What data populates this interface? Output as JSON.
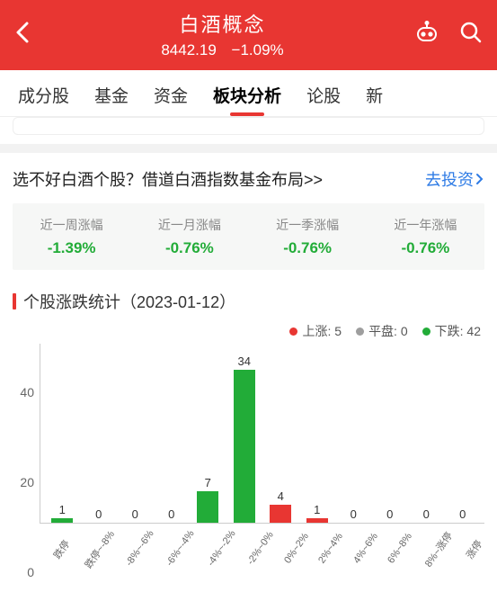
{
  "colors": {
    "brand_red": "#e83632",
    "green": "#22ac38",
    "gray": "#9e9e9e",
    "link_blue": "#2e7be5",
    "metric_bg": "#f6f7f6"
  },
  "header": {
    "title": "白酒概念",
    "index_value": "8442.19",
    "change_pct": "−1.09%"
  },
  "tabs": [
    {
      "label": "成分股",
      "active": false
    },
    {
      "label": "基金",
      "active": false
    },
    {
      "label": "资金",
      "active": false
    },
    {
      "label": "板块分析",
      "active": true
    },
    {
      "label": "论股",
      "active": false
    },
    {
      "label": "新",
      "active": false
    }
  ],
  "promo": {
    "text": "选不好白酒个股？借道白酒指数基金布局>>",
    "link_label": "去投资"
  },
  "metrics": [
    {
      "label": "近一周涨幅",
      "value": "-1.39%",
      "color": "#22ac38"
    },
    {
      "label": "近一月涨幅",
      "value": "-0.76%",
      "color": "#22ac38"
    },
    {
      "label": "近一季涨幅",
      "value": "-0.76%",
      "color": "#22ac38"
    },
    {
      "label": "近一年涨幅",
      "value": "-0.76%",
      "color": "#22ac38"
    }
  ],
  "section": {
    "title": "个股涨跌统计（2023-01-12）"
  },
  "legend": {
    "up": {
      "label": "上涨",
      "count": 5,
      "color": "#e83632"
    },
    "flat": {
      "label": "平盘",
      "count": 0,
      "color": "#9e9e9e"
    },
    "down": {
      "label": "下跌",
      "count": 42,
      "color": "#22ac38"
    }
  },
  "chart": {
    "type": "bar",
    "y_max": 40,
    "y_ticks": [
      0,
      20,
      40
    ],
    "bar_width_ratio": 0.6,
    "categories": [
      "跌停",
      "跌停~-8%",
      "-8%~-6%",
      "-6%~-4%",
      "-4%~-2%",
      "-2%~0%",
      "0%~2%",
      "2%~4%",
      "4%~6%",
      "6%~8%",
      "8%~涨停",
      "涨停"
    ],
    "bars": [
      {
        "value": 1,
        "color": "#22ac38"
      },
      {
        "value": 0,
        "color": "#22ac38"
      },
      {
        "value": 0,
        "color": "#22ac38"
      },
      {
        "value": 0,
        "color": "#22ac38"
      },
      {
        "value": 7,
        "color": "#22ac38"
      },
      {
        "value": 34,
        "color": "#22ac38"
      },
      {
        "value": 4,
        "color": "#e83632"
      },
      {
        "value": 1,
        "color": "#e83632"
      },
      {
        "value": 0,
        "color": "#e83632"
      },
      {
        "value": 0,
        "color": "#e83632"
      },
      {
        "value": 0,
        "color": "#e83632"
      },
      {
        "value": 0,
        "color": "#e83632"
      }
    ]
  }
}
